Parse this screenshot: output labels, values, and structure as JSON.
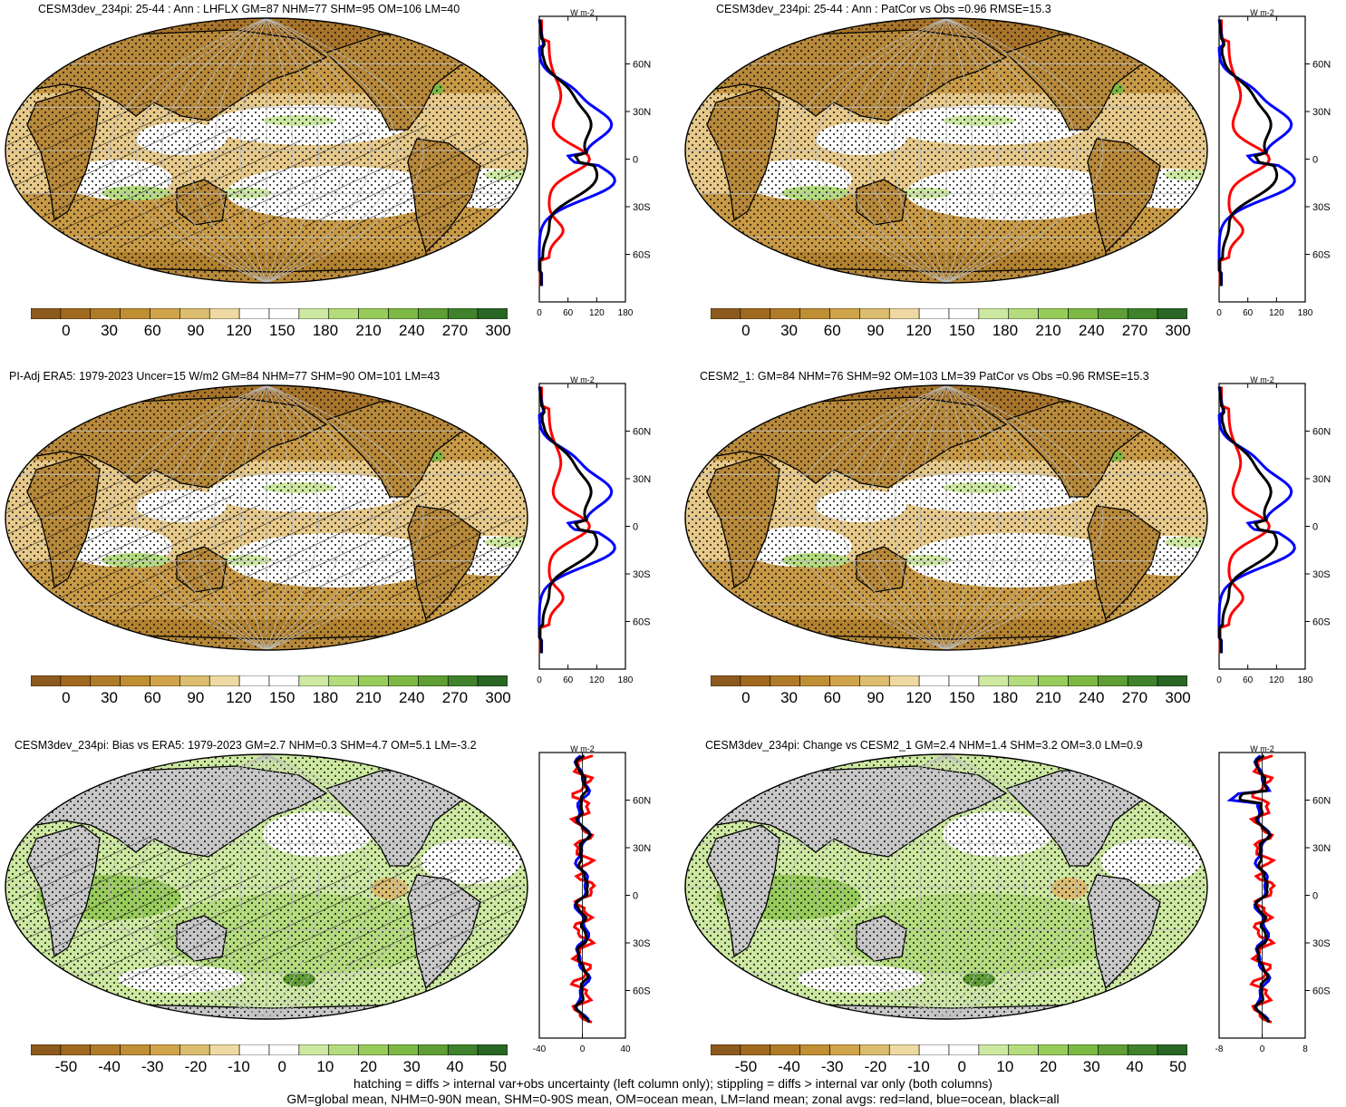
{
  "panels": [
    {
      "title": "CESM3dev_234pi: 25-44 : Ann : LHFLX GM=87 NHM=77 SHM=95 OM=106 LM=40",
      "kind": "clim",
      "hatch": true,
      "stipple": true,
      "colorbar_labels": [
        "0",
        "30",
        "60",
        "90",
        "120",
        "150",
        "180",
        "210",
        "240",
        "270",
        "300"
      ],
      "zonal": {
        "units": "W m-2",
        "xticks": [
          "0",
          "60",
          "120",
          "180"
        ],
        "yticks": [
          "60N",
          "30N",
          "0",
          "30S",
          "60S"
        ]
      }
    },
    {
      "title": "CESM3dev_234pi: 25-44 : Ann : PatCor vs Obs =0.96 RMSE=15.3",
      "kind": "clim",
      "hatch": false,
      "stipple": true,
      "colorbar_labels": [
        "0",
        "30",
        "60",
        "90",
        "120",
        "150",
        "180",
        "210",
        "240",
        "270",
        "300"
      ],
      "zonal": {
        "units": "W m-2",
        "xticks": [
          "0",
          "60",
          "120",
          "180"
        ],
        "yticks": [
          "60N",
          "30N",
          "0",
          "30S",
          "60S"
        ]
      }
    },
    {
      "title": "PI-Adj ERA5: 1979-2023 Uncer=15 W/m2 GM=84 NHM=77 SHM=90 OM=101 LM=43",
      "kind": "clim",
      "hatch": true,
      "stipple": true,
      "colorbar_labels": [
        "0",
        "30",
        "60",
        "90",
        "120",
        "150",
        "180",
        "210",
        "240",
        "270",
        "300"
      ],
      "zonal": {
        "units": "W m-2",
        "xticks": [
          "0",
          "60",
          "120",
          "180"
        ],
        "yticks": [
          "60N",
          "30N",
          "0",
          "30S",
          "60S"
        ]
      }
    },
    {
      "title": "CESM2_1: GM=84 NHM=76 SHM=92 OM=103 LM=39 PatCor vs Obs =0.96 RMSE=15.3",
      "kind": "clim",
      "hatch": false,
      "stipple": true,
      "colorbar_labels": [
        "0",
        "30",
        "60",
        "90",
        "120",
        "150",
        "180",
        "210",
        "240",
        "270",
        "300"
      ],
      "zonal": {
        "units": "W m-2",
        "xticks": [
          "0",
          "60",
          "120",
          "180"
        ],
        "yticks": [
          "60N",
          "30N",
          "0",
          "30S",
          "60S"
        ]
      }
    },
    {
      "title": "CESM3dev_234pi: Bias vs ERA5: 1979-2023 GM=2.7 NHM=0.3 SHM=4.7 OM=5.1 LM=-3.2",
      "kind": "diff",
      "hatch": true,
      "stipple": true,
      "colorbar_labels": [
        "-50",
        "-40",
        "-30",
        "-20",
        "-10",
        "0",
        "10",
        "20",
        "30",
        "40",
        "50"
      ],
      "zonal": {
        "units": "W m-2",
        "xticks": [
          "-40",
          "0",
          "40"
        ],
        "yticks": [
          "60N",
          "30N",
          "0",
          "30S",
          "60S"
        ]
      }
    },
    {
      "title": "CESM3dev_234pi: Change vs CESM2_1 GM=2.4 NHM=1.4 SHM=3.2 OM=3.0 LM=0.9",
      "kind": "diff",
      "hatch": false,
      "stipple": true,
      "colorbar_labels": [
        "-50",
        "-40",
        "-30",
        "-20",
        "-10",
        "0",
        "10",
        "20",
        "30",
        "40",
        "50"
      ],
      "zonal": {
        "units": "W m-2",
        "xticks": [
          "-8",
          "0",
          "8"
        ],
        "yticks": [
          "60N",
          "30N",
          "0",
          "30S",
          "60S"
        ]
      }
    }
  ],
  "footer": {
    "line1": "hatching = diffs > internal var+obs uncertainty (left column only); stippling = diffs > internal var only (both columns)",
    "line2": "GM=global mean, NHM=0-90N mean, SHM=0-90S mean, OM=ocean mean, LM=land mean; zonal avgs: red=land, blue=ocean, black=all"
  },
  "colors": {
    "clim_palette": [
      "#8c5a1c",
      "#a0691f",
      "#b07b28",
      "#c08e33",
      "#d0a44a",
      "#dcbc6e",
      "#eed9a2",
      "#ffffff",
      "#ffffff",
      "#cde8a0",
      "#b4dc7c",
      "#98cc5a",
      "#7cb843",
      "#5e9e34",
      "#3f822b",
      "#2a6624"
    ],
    "diff_palette": [
      "#8c5a1c",
      "#a0691f",
      "#b07b28",
      "#c08e33",
      "#d0a44a",
      "#dcbc6e",
      "#eed9a2",
      "#ffffff",
      "#ffffff",
      "#cde8a0",
      "#b4dc7c",
      "#98cc5a",
      "#7cb843",
      "#5e9e34",
      "#3f822b",
      "#2a6624"
    ],
    "land_line": "#ff0000",
    "ocean_line": "#0000ff",
    "all_line": "#000000",
    "missing": "#c8c8c8"
  }
}
